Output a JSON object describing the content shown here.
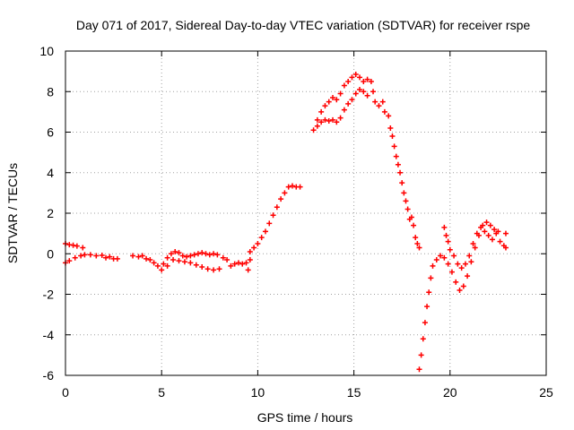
{
  "chart_data": {
    "type": "scatter",
    "title": "Day 071 of 2017, Sidereal Day-to-day VTEC variation (SDTVAR) for receiver rspe",
    "xlabel": "GPS time / hours",
    "ylabel": "SDTVAR / TECUs",
    "xlim": [
      0,
      25
    ],
    "ylim": [
      -6,
      10
    ],
    "xticks": [
      "0",
      "5",
      "10",
      "15",
      "20",
      "25"
    ],
    "yticks": [
      "-6",
      "-4",
      "-2",
      "0",
      "2",
      "4",
      "6",
      "8",
      "10"
    ],
    "grid": true,
    "marker": "plus",
    "series": [
      {
        "color": "#ff0000",
        "points": [
          [
            0.0,
            0.5
          ],
          [
            0.2,
            0.45
          ],
          [
            0.4,
            0.42
          ],
          [
            0.6,
            0.38
          ],
          [
            0.9,
            0.3
          ],
          [
            0.0,
            -0.45
          ],
          [
            0.2,
            -0.35
          ],
          [
            0.5,
            -0.2
          ],
          [
            0.8,
            -0.1
          ],
          [
            1.0,
            -0.05
          ],
          [
            1.3,
            -0.05
          ],
          [
            1.6,
            -0.1
          ],
          [
            1.9,
            -0.08
          ],
          [
            2.1,
            -0.2
          ],
          [
            2.3,
            -0.15
          ],
          [
            2.5,
            -0.25
          ],
          [
            2.7,
            -0.25
          ],
          [
            3.5,
            -0.1
          ],
          [
            3.8,
            -0.15
          ],
          [
            4.0,
            -0.1
          ],
          [
            4.2,
            -0.25
          ],
          [
            4.4,
            -0.3
          ],
          [
            4.6,
            -0.45
          ],
          [
            4.8,
            -0.6
          ],
          [
            5.0,
            -0.8
          ],
          [
            5.1,
            -0.5
          ],
          [
            5.3,
            -0.2
          ],
          [
            5.5,
            0.0
          ],
          [
            5.7,
            0.1
          ],
          [
            5.9,
            0.05
          ],
          [
            6.1,
            -0.1
          ],
          [
            6.3,
            -0.15
          ],
          [
            6.5,
            -0.1
          ],
          [
            6.7,
            -0.05
          ],
          [
            6.9,
            0.0
          ],
          [
            7.1,
            0.05
          ],
          [
            7.3,
            0.0
          ],
          [
            7.5,
            -0.05
          ],
          [
            7.7,
            0.0
          ],
          [
            7.9,
            -0.05
          ],
          [
            5.3,
            -0.6
          ],
          [
            5.6,
            -0.3
          ],
          [
            5.9,
            -0.35
          ],
          [
            6.2,
            -0.4
          ],
          [
            6.5,
            -0.45
          ],
          [
            6.8,
            -0.55
          ],
          [
            7.1,
            -0.65
          ],
          [
            7.4,
            -0.75
          ],
          [
            7.7,
            -0.8
          ],
          [
            8.0,
            -0.75
          ],
          [
            8.2,
            -0.2
          ],
          [
            8.4,
            -0.3
          ],
          [
            8.6,
            -0.6
          ],
          [
            8.8,
            -0.5
          ],
          [
            9.0,
            -0.45
          ],
          [
            9.2,
            -0.5
          ],
          [
            9.4,
            -0.45
          ],
          [
            9.5,
            -0.8
          ],
          [
            9.6,
            -0.3
          ],
          [
            9.6,
            0.1
          ],
          [
            9.8,
            0.3
          ],
          [
            10.0,
            0.5
          ],
          [
            10.2,
            0.8
          ],
          [
            10.4,
            1.1
          ],
          [
            10.6,
            1.5
          ],
          [
            10.8,
            1.9
          ],
          [
            11.0,
            2.3
          ],
          [
            11.2,
            2.7
          ],
          [
            11.4,
            3.0
          ],
          [
            11.6,
            3.3
          ],
          [
            11.8,
            3.35
          ],
          [
            12.0,
            3.3
          ],
          [
            12.2,
            3.3
          ],
          [
            12.9,
            6.1
          ],
          [
            13.1,
            6.3
          ],
          [
            13.3,
            6.5
          ],
          [
            13.5,
            6.6
          ],
          [
            13.7,
            6.55
          ],
          [
            13.9,
            6.6
          ],
          [
            14.1,
            6.5
          ],
          [
            14.3,
            6.7
          ],
          [
            14.5,
            7.1
          ],
          [
            14.7,
            7.4
          ],
          [
            14.9,
            7.6
          ],
          [
            15.1,
            7.9
          ],
          [
            15.3,
            8.1
          ],
          [
            15.5,
            8.0
          ],
          [
            15.7,
            7.8
          ],
          [
            13.1,
            6.6
          ],
          [
            13.3,
            7.0
          ],
          [
            13.5,
            7.3
          ],
          [
            13.7,
            7.5
          ],
          [
            13.9,
            7.7
          ],
          [
            14.1,
            7.6
          ],
          [
            14.3,
            7.9
          ],
          [
            14.5,
            8.3
          ],
          [
            14.7,
            8.5
          ],
          [
            14.9,
            8.7
          ],
          [
            15.1,
            8.85
          ],
          [
            15.3,
            8.7
          ],
          [
            15.5,
            8.5
          ],
          [
            15.7,
            8.6
          ],
          [
            15.9,
            8.5
          ],
          [
            16.0,
            8.0
          ],
          [
            16.1,
            7.5
          ],
          [
            16.3,
            7.3
          ],
          [
            16.5,
            7.5
          ],
          [
            16.6,
            7.0
          ],
          [
            16.8,
            6.8
          ],
          [
            16.9,
            6.2
          ],
          [
            17.0,
            5.8
          ],
          [
            17.1,
            5.3
          ],
          [
            17.2,
            4.8
          ],
          [
            17.3,
            4.4
          ],
          [
            17.4,
            4.0
          ],
          [
            17.5,
            3.5
          ],
          [
            17.6,
            3.0
          ],
          [
            17.7,
            2.6
          ],
          [
            17.8,
            2.2
          ],
          [
            17.9,
            1.7
          ],
          [
            18.0,
            1.8
          ],
          [
            18.1,
            1.4
          ],
          [
            18.2,
            0.8
          ],
          [
            18.3,
            0.5
          ],
          [
            18.4,
            0.3
          ],
          [
            18.4,
            -5.7
          ],
          [
            18.5,
            -5.0
          ],
          [
            18.6,
            -4.2
          ],
          [
            18.7,
            -3.4
          ],
          [
            18.8,
            -2.6
          ],
          [
            18.9,
            -1.9
          ],
          [
            19.0,
            -1.2
          ],
          [
            19.1,
            -0.6
          ],
          [
            19.3,
            -0.3
          ],
          [
            19.5,
            -0.1
          ],
          [
            19.7,
            -0.2
          ],
          [
            19.9,
            -0.5
          ],
          [
            20.1,
            -0.9
          ],
          [
            20.3,
            -1.4
          ],
          [
            20.5,
            -1.8
          ],
          [
            20.7,
            -1.6
          ],
          [
            20.9,
            -1.1
          ],
          [
            21.1,
            -0.4
          ],
          [
            21.3,
            0.3
          ],
          [
            21.5,
            0.9
          ],
          [
            21.7,
            1.4
          ],
          [
            21.9,
            1.55
          ],
          [
            22.1,
            1.4
          ],
          [
            22.3,
            1.2
          ],
          [
            22.5,
            1.1
          ],
          [
            19.7,
            1.3
          ],
          [
            19.8,
            0.9
          ],
          [
            19.9,
            0.6
          ],
          [
            20.0,
            0.2
          ],
          [
            20.2,
            -0.1
          ],
          [
            20.4,
            -0.5
          ],
          [
            20.6,
            -0.7
          ],
          [
            20.8,
            -0.5
          ],
          [
            21.0,
            -0.1
          ],
          [
            21.2,
            0.5
          ],
          [
            21.4,
            1.0
          ],
          [
            21.6,
            1.3
          ],
          [
            21.8,
            1.1
          ],
          [
            22.0,
            0.9
          ],
          [
            22.2,
            0.7
          ],
          [
            22.4,
            1.0
          ],
          [
            22.6,
            0.6
          ],
          [
            22.8,
            0.4
          ],
          [
            22.9,
            1.0
          ],
          [
            22.9,
            0.3
          ]
        ]
      }
    ]
  }
}
